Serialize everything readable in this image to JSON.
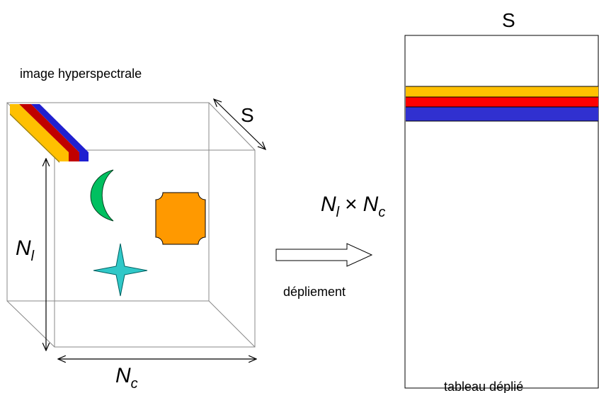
{
  "labels": {
    "image_label": "image hyperspectrale",
    "spectral_depth": "S",
    "rows": {
      "base": "N",
      "sub": "l"
    },
    "cols": {
      "base": "N",
      "sub": "c"
    },
    "product": {
      "left": {
        "base": "N",
        "sub": "l"
      },
      "op": "×",
      "right": {
        "base": "N",
        "sub": "c"
      }
    },
    "arrow_label": "dépliement",
    "table_top": "S",
    "table_label": "tableau déplié"
  }
}
